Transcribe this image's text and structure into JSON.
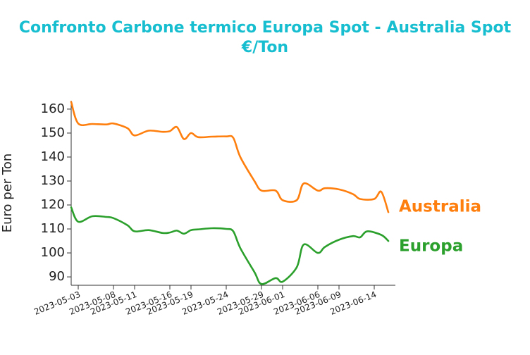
{
  "chart_data": {
    "type": "line",
    "title_line1": "Confronto Carbone termico Europa Spot - Australia Spot",
    "title_line2": "€/Ton",
    "ylabel": "Euro per Ton",
    "ylim": [
      86.5,
      163.5
    ],
    "yticks": [
      90,
      100,
      110,
      120,
      130,
      140,
      150,
      160
    ],
    "xlim": [
      "2023-05-02",
      "2023-06-17"
    ],
    "xticks": [
      "2023-05-03",
      "2023-05-08",
      "2023-05-11",
      "2023-05-16",
      "2023-05-19",
      "2023-05-24",
      "2023-05-29",
      "2023-06-01",
      "2023-06-06",
      "2023-06-09",
      "2023-06-14"
    ],
    "series": [
      {
        "name": "Australia",
        "color": "#ff7f0e",
        "points": [
          [
            "2023-05-02",
            163
          ],
          [
            "2023-05-03",
            154
          ],
          [
            "2023-05-05",
            153.8
          ],
          [
            "2023-05-07",
            153.6
          ],
          [
            "2023-05-08",
            154
          ],
          [
            "2023-05-10",
            152
          ],
          [
            "2023-05-11",
            149
          ],
          [
            "2023-05-13",
            151
          ],
          [
            "2023-05-15",
            150.5
          ],
          [
            "2023-05-16",
            150.8
          ],
          [
            "2023-05-17",
            152.5
          ],
          [
            "2023-05-18",
            147.5
          ],
          [
            "2023-05-19",
            150
          ],
          [
            "2023-05-20",
            148.3
          ],
          [
            "2023-05-22",
            148.5
          ],
          [
            "2023-05-24",
            148.6
          ],
          [
            "2023-05-25",
            148
          ],
          [
            "2023-05-26",
            140
          ],
          [
            "2023-05-28",
            130
          ],
          [
            "2023-05-29",
            126
          ],
          [
            "2023-05-31",
            126
          ],
          [
            "2023-06-01",
            122
          ],
          [
            "2023-06-03",
            122
          ],
          [
            "2023-06-04",
            129
          ],
          [
            "2023-06-06",
            126
          ],
          [
            "2023-06-07",
            127
          ],
          [
            "2023-06-09",
            126.5
          ],
          [
            "2023-06-11",
            124.5
          ],
          [
            "2023-06-12",
            122.5
          ],
          [
            "2023-06-14",
            122.5
          ],
          [
            "2023-06-15",
            125.5
          ],
          [
            "2023-06-16",
            117
          ]
        ]
      },
      {
        "name": "Europa",
        "color": "#2ca02c",
        "points": [
          [
            "2023-05-02",
            119
          ],
          [
            "2023-05-03",
            113
          ],
          [
            "2023-05-05",
            115.3
          ],
          [
            "2023-05-07",
            115
          ],
          [
            "2023-05-08",
            114.5
          ],
          [
            "2023-05-10",
            111.5
          ],
          [
            "2023-05-11",
            109
          ],
          [
            "2023-05-13",
            109.5
          ],
          [
            "2023-05-15",
            108.3
          ],
          [
            "2023-05-16",
            108.5
          ],
          [
            "2023-05-17",
            109.3
          ],
          [
            "2023-05-18",
            108
          ],
          [
            "2023-05-19",
            109.5
          ],
          [
            "2023-05-20",
            109.8
          ],
          [
            "2023-05-22",
            110.3
          ],
          [
            "2023-05-24",
            110
          ],
          [
            "2023-05-25",
            109
          ],
          [
            "2023-05-26",
            102
          ],
          [
            "2023-05-28",
            92
          ],
          [
            "2023-05-29",
            87
          ],
          [
            "2023-05-31",
            89.5
          ],
          [
            "2023-06-01",
            88
          ],
          [
            "2023-06-03",
            94
          ],
          [
            "2023-06-04",
            103.5
          ],
          [
            "2023-06-06",
            100
          ],
          [
            "2023-06-07",
            102.5
          ],
          [
            "2023-06-09",
            105.5
          ],
          [
            "2023-06-11",
            107
          ],
          [
            "2023-06-12",
            106.5
          ],
          [
            "2023-06-13",
            109
          ],
          [
            "2023-06-15",
            107.5
          ],
          [
            "2023-06-16",
            105
          ]
        ]
      }
    ]
  }
}
